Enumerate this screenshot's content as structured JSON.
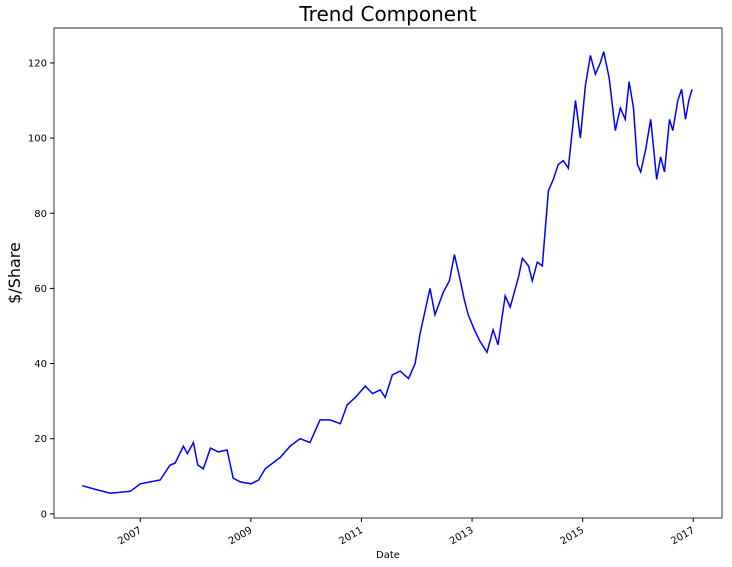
{
  "chart_data": {
    "type": "line",
    "title": "Trend Component",
    "x_label": "Date",
    "y_label": "$/Share",
    "x": [
      2005.95,
      2006.19,
      2006.46,
      2006.82,
      2007.0,
      2007.18,
      2007.36,
      2007.54,
      2007.63,
      2007.78,
      2007.85,
      2007.96,
      2008.04,
      2008.14,
      2008.27,
      2008.41,
      2008.57,
      2008.68,
      2008.81,
      2009.0,
      2009.14,
      2009.26,
      2009.53,
      2009.71,
      2009.89,
      2010.07,
      2010.25,
      2010.43,
      2010.62,
      2010.74,
      2010.89,
      2011.07,
      2011.2,
      2011.34,
      2011.43,
      2011.56,
      2011.7,
      2011.85,
      2011.97,
      2012.06,
      2012.24,
      2012.33,
      2012.48,
      2012.59,
      2012.68,
      2012.79,
      2012.86,
      2012.93,
      2013.04,
      2013.14,
      2013.27,
      2013.38,
      2013.47,
      2013.6,
      2013.69,
      2013.84,
      2013.91,
      2014.02,
      2014.09,
      2014.18,
      2014.27,
      2014.38,
      2014.47,
      2014.56,
      2014.65,
      2014.74,
      2014.87,
      2014.96,
      2015.05,
      2015.14,
      2015.23,
      2015.32,
      2015.38,
      2015.48,
      2015.59,
      2015.68,
      2015.77,
      2015.84,
      2015.92,
      2015.99,
      2016.05,
      2016.14,
      2016.23,
      2016.34,
      2016.41,
      2016.48,
      2016.57,
      2016.63,
      2016.72,
      2016.79,
      2016.86,
      2016.92,
      2016.98
    ],
    "series": [
      {
        "name": "trend",
        "color": "#0000ff",
        "values": [
          7.5,
          6.5,
          5.5,
          6,
          8,
          8.5,
          9,
          13,
          13.5,
          18,
          16,
          19,
          13,
          12,
          17.5,
          16.5,
          17,
          9.5,
          8.5,
          8,
          9,
          12,
          15,
          18,
          20,
          19,
          25,
          25,
          24,
          29,
          31,
          34,
          32,
          33,
          31,
          37,
          38,
          36,
          40,
          48,
          60,
          53,
          59,
          62,
          69,
          62,
          57,
          53,
          49,
          46,
          43,
          49,
          45,
          58,
          55,
          63,
          68,
          66,
          62,
          67,
          66,
          86,
          89,
          93,
          94,
          92,
          110,
          100,
          114,
          122,
          117,
          120,
          123,
          116,
          102,
          108,
          105,
          115,
          108,
          93,
          91,
          97,
          105,
          89,
          95,
          91,
          105,
          102,
          110,
          113,
          105,
          110,
          113
        ]
      }
    ],
    "xlim": [
      2005.44,
      2017.52
    ],
    "ylim": [
      -1.1,
      129.3
    ],
    "xticks": [
      2007,
      2009,
      2011,
      2013,
      2015,
      2017
    ],
    "yticks": [
      0,
      20,
      40,
      60,
      80,
      100,
      120
    ]
  }
}
